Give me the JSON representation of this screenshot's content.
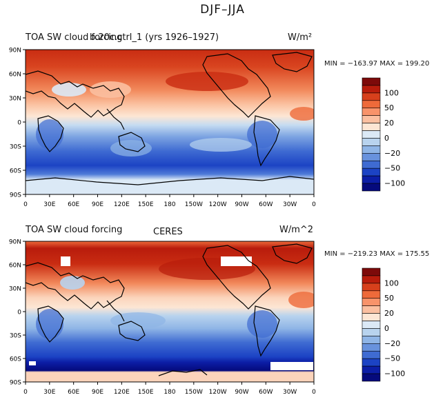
{
  "figure": {
    "title": "DJF–JJA"
  },
  "colorbar": {
    "colors": [
      "#7d0a0a",
      "#b81c0c",
      "#d7401c",
      "#ee6a3a",
      "#f8936a",
      "#fbbfa0",
      "#fde6d4",
      "#dbe9f6",
      "#b8d3ee",
      "#8fb5e6",
      "#6892dd",
      "#3f6bd2",
      "#1c43c4",
      "#0c1ea6",
      "#050a7c"
    ],
    "labels": [
      "100",
      "50",
      "20",
      "0",
      "−20",
      "−50",
      "−100"
    ]
  },
  "axes": {
    "lat_ticks": [
      "90N",
      "60N",
      "30N",
      "0",
      "30S",
      "60S",
      "90S"
    ],
    "lon_ticks": [
      "0",
      "30E",
      "60E",
      "90E",
      "120E",
      "150E",
      "180",
      "150W",
      "120W",
      "90W",
      "60W",
      "30W",
      "0"
    ]
  },
  "panels": [
    {
      "left_title": "TOA SW cloud forcing",
      "center_title": "b.20c.ctrl_1 (yrs 1926–1927)",
      "units": "W/m²",
      "min_max": "MIN = −163.97  MAX = 199.20"
    },
    {
      "left_title": "TOA SW cloud forcing",
      "center_title": "CERES",
      "units": "W/m^2",
      "min_max": "MIN = −219.23  MAX = 175.55"
    }
  ]
}
